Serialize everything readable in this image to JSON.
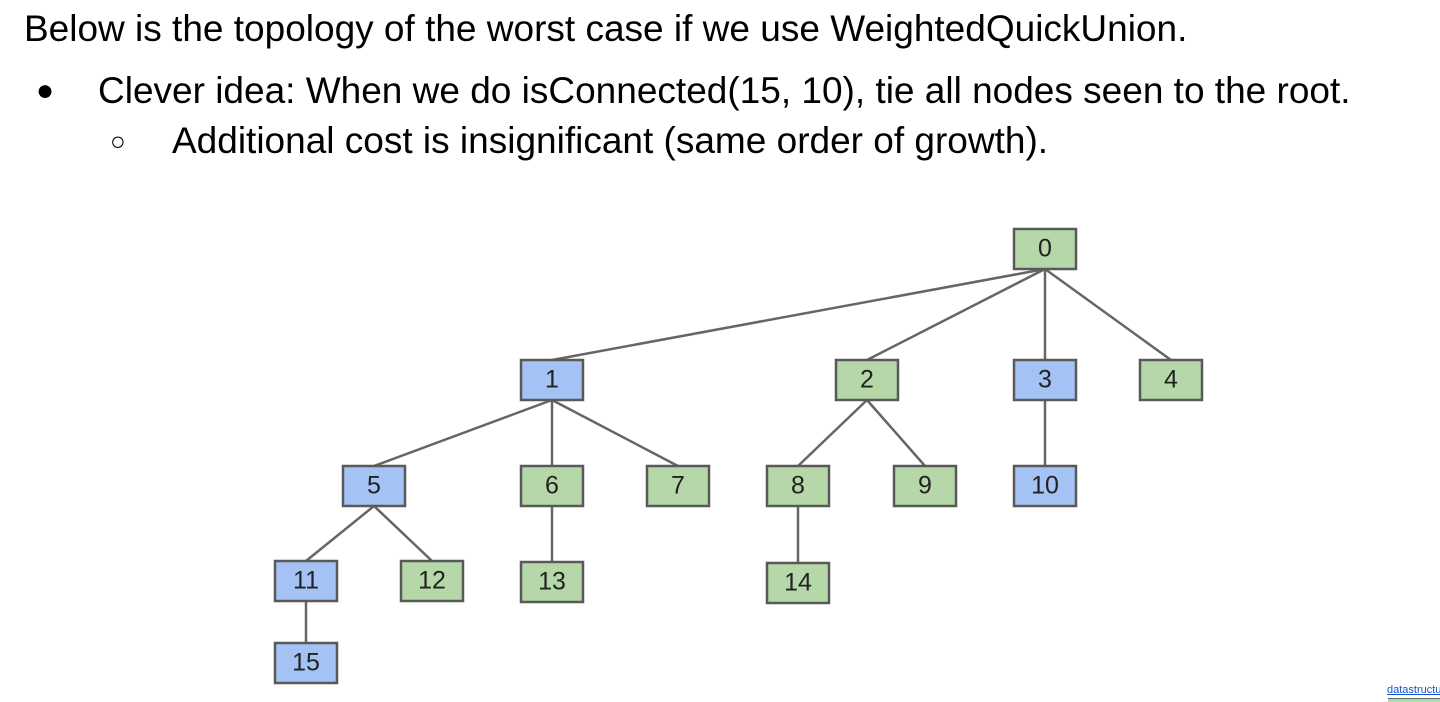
{
  "slide": {
    "heading": "Below is the topology of the worst case if we use WeightedQuickUnion.",
    "bullets": [
      {
        "glyph": "●",
        "text": "Clever idea: When we do isConnected(15, 10), tie all nodes seen to the root."
      },
      {
        "glyph": "○",
        "text": "Additional cost is insignificant (same order of growth)."
      }
    ],
    "footer_link": "datastructur.es"
  },
  "colors": {
    "blue_node": "#a4c2f4",
    "green_node": "#b6d7a8",
    "border": "#595959",
    "edge": "#666666"
  },
  "tree": {
    "nodes": [
      {
        "id": "0",
        "color": "green"
      },
      {
        "id": "1",
        "color": "blue"
      },
      {
        "id": "2",
        "color": "green"
      },
      {
        "id": "3",
        "color": "blue"
      },
      {
        "id": "4",
        "color": "green"
      },
      {
        "id": "5",
        "color": "blue"
      },
      {
        "id": "6",
        "color": "green"
      },
      {
        "id": "7",
        "color": "green"
      },
      {
        "id": "8",
        "color": "green"
      },
      {
        "id": "9",
        "color": "green"
      },
      {
        "id": "10",
        "color": "blue"
      },
      {
        "id": "11",
        "color": "blue"
      },
      {
        "id": "12",
        "color": "green"
      },
      {
        "id": "13",
        "color": "green"
      },
      {
        "id": "14",
        "color": "green"
      },
      {
        "id": "15",
        "color": "blue"
      }
    ],
    "edges": [
      [
        "0",
        "1"
      ],
      [
        "0",
        "2"
      ],
      [
        "0",
        "3"
      ],
      [
        "0",
        "4"
      ],
      [
        "1",
        "5"
      ],
      [
        "1",
        "6"
      ],
      [
        "1",
        "7"
      ],
      [
        "2",
        "8"
      ],
      [
        "2",
        "9"
      ],
      [
        "3",
        "10"
      ],
      [
        "5",
        "11"
      ],
      [
        "5",
        "12"
      ],
      [
        "6",
        "13"
      ],
      [
        "8",
        "14"
      ],
      [
        "11",
        "15"
      ]
    ]
  }
}
